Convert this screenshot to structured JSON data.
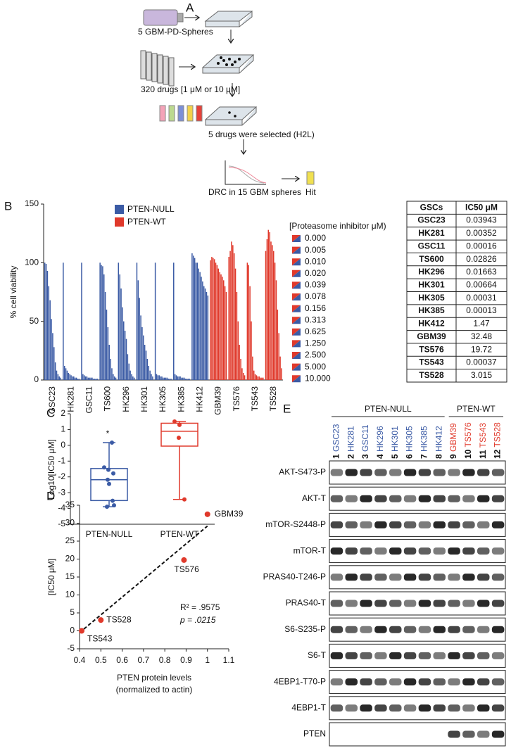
{
  "panel_labels": [
    "A",
    "B",
    "C",
    "D",
    "E"
  ],
  "workflow": {
    "spheres": "5 GBM-PD-Spheres",
    "drugs": "320 drugs [1 μM  or 10 μM]",
    "selected": "5 drugs were selected (H2L)",
    "drc": "DRC in 15 GBM spheres",
    "hit": "Hit"
  },
  "chart_data": [
    {
      "type": "bar",
      "y_label": "% cell viability",
      "ylim": [
        0,
        150
      ],
      "yticks": [
        0,
        50,
        100,
        150
      ],
      "legend_title": "[Proteasome inhibitor μM)",
      "doses": [
        "0.000",
        "0.005",
        "0.010",
        "0.020",
        "0.039",
        "0.078",
        "0.156",
        "0.313",
        "0.625",
        "1.250",
        "2.500",
        "5.000",
        "10.000"
      ],
      "groups": [
        {
          "name": "PTEN-NULL",
          "color": "#3b5ba5",
          "categories": [
            "GSC23",
            "HK281",
            "GSC11",
            "TS600",
            "HK296",
            "HK301",
            "HK305",
            "HK385",
            "HK412"
          ],
          "values": [
            [
              100,
              99,
              93,
              80,
              68,
              52,
              40,
              28,
              15,
              8,
              5,
              3,
              2
            ],
            [
              100,
              12,
              10,
              8,
              6,
              5,
              4,
              3,
              3,
              2,
              2,
              1,
              1
            ],
            [
              100,
              5,
              4,
              3,
              3,
              2,
              2,
              2,
              2,
              1,
              1,
              1,
              1
            ],
            [
              100,
              98,
              97,
              90,
              75,
              60,
              45,
              30,
              18,
              10,
              5,
              3,
              2
            ],
            [
              100,
              90,
              78,
              62,
              50,
              42,
              35,
              22,
              14,
              8,
              5,
              3,
              2
            ],
            [
              100,
              85,
              70,
              55,
              45,
              38,
              30,
              25,
              18,
              12,
              8,
              5,
              3
            ],
            [
              100,
              5,
              4,
              4,
              3,
              3,
              2,
              2,
              2,
              2,
              1,
              1,
              1
            ],
            [
              100,
              5,
              4,
              3,
              3,
              3,
              2,
              2,
              2,
              1,
              1,
              1,
              1
            ],
            [
              108,
              106,
              104,
              100,
              100,
              95,
              92,
              88,
              84,
              80,
              78,
              75,
              72
            ]
          ]
        },
        {
          "name": "PTEN-WT",
          "color": "#e0392b",
          "categories": [
            "GBM39",
            "TS576",
            "TS543",
            "TS528"
          ],
          "values": [
            [
              102,
              105,
              104,
              103,
              100,
              98,
              95,
              92,
              90,
              88,
              85,
              80,
              75
            ],
            [
              105,
              110,
              118,
              115,
              108,
              95,
              75,
              50,
              30,
              18,
              10,
              6,
              4
            ],
            [
              100,
              98,
              80,
              50,
              20,
              8,
              5,
              4,
              3,
              3,
              2,
              2,
              2
            ],
            [
              110,
              120,
              128,
              126,
              118,
              115,
              110,
              100,
              85,
              60,
              40,
              20,
              10
            ]
          ]
        }
      ]
    },
    {
      "type": "box",
      "y_label": "Log10[IC50 μM]",
      "ylim": [
        -5,
        2
      ],
      "yticks": [
        -5,
        -4,
        -3,
        -2,
        -1,
        0,
        1,
        2
      ],
      "categories": [
        "PTEN-NULL",
        "PTEN-WT"
      ],
      "colors": [
        "#3b5ba5",
        "#e0392b"
      ],
      "annotation": "*",
      "boxes": [
        {
          "min": -3.89,
          "q1": -3.5,
          "median": -2.18,
          "q3": -1.47,
          "max": 0.17,
          "points": [
            -1.4,
            -2.45,
            -3.8,
            -1.55,
            -1.78,
            -2.18,
            -3.51,
            -3.89,
            0.17
          ]
        },
        {
          "min": -3.43,
          "q1": -0.05,
          "median": 0.89,
          "q3": 1.4,
          "max": 1.51,
          "points": [
            1.51,
            1.29,
            -3.43,
            0.48
          ]
        }
      ]
    },
    {
      "type": "scatter",
      "x_label": [
        "PTEN protein levels",
        "(normalized to actin)"
      ],
      "y_label": "[IC50 μM]",
      "xlim": [
        0.4,
        1.1
      ],
      "xticks": [
        0.4,
        0.5,
        0.6,
        0.7,
        0.8,
        0.9,
        1,
        1.1
      ],
      "ylim": [
        -5,
        35
      ],
      "yticks": [
        -5,
        0,
        5,
        10,
        15,
        20,
        25,
        30,
        35
      ],
      "color": "#e0392b",
      "x": [
        0.41,
        0.5,
        0.89,
        1
      ],
      "y": [
        0.00037,
        3.015,
        19.72,
        32.48
      ],
      "labels": [
        "TS543",
        "TS528",
        "TS576",
        "GBM39"
      ],
      "fit": {
        "x": [
          0.4,
          1
        ],
        "y": [
          -0.5,
          29.2
        ]
      },
      "annotations": [
        "R² = .9575",
        "p = .0215"
      ]
    }
  ],
  "table": {
    "header": [
      "GSCs",
      "IC50 μM"
    ],
    "rows": [
      [
        "GSC23",
        "0.03943"
      ],
      [
        "HK281",
        "0.00352"
      ],
      [
        "GSC11",
        "0.00016"
      ],
      [
        "TS600",
        "0.02826"
      ],
      [
        "HK296",
        "0.01663"
      ],
      [
        "HK301",
        "0.00664"
      ],
      [
        "HK305",
        "0.00031"
      ],
      [
        "HK385",
        "0.00013"
      ],
      [
        "HK412",
        "1.47"
      ],
      [
        "GBM39",
        "32.48"
      ],
      [
        "TS576",
        "19.72"
      ],
      [
        "TS543",
        "0.00037"
      ],
      [
        "TS528",
        "3.015"
      ]
    ]
  },
  "blot": {
    "groups": [
      {
        "name": "PTEN-NULL",
        "color": "#3b5ba5",
        "lanes": [
          {
            "number": 1,
            "name": "GSC23"
          },
          {
            "number": 2,
            "name": "HK281"
          },
          {
            "number": 3,
            "name": "GSC11"
          },
          {
            "number": 4,
            "name": "HK296"
          },
          {
            "number": 5,
            "name": "HK301"
          },
          {
            "number": 6,
            "name": "HK305"
          },
          {
            "number": 7,
            "name": "HK385"
          },
          {
            "number": 8,
            "name": "HK412"
          }
        ]
      },
      {
        "name": "PTEN-WT",
        "color": "#e0392b",
        "lanes": [
          {
            "number": 9,
            "name": "GBM39"
          },
          {
            "number": 10,
            "name": "TS576"
          },
          {
            "number": 11,
            "name": "TS543"
          },
          {
            "number": 12,
            "name": "TS528"
          }
        ]
      }
    ],
    "rows": [
      "AKT-S473-P",
      "AKT-T",
      "mTOR-S2448-P",
      "mTOR-T",
      "PRAS40-T246-P",
      "PRAS40-T",
      "S6-S235-P",
      "S6-T",
      "4EBP1-T70-P",
      "4EBP1-T",
      "PTEN"
    ]
  }
}
